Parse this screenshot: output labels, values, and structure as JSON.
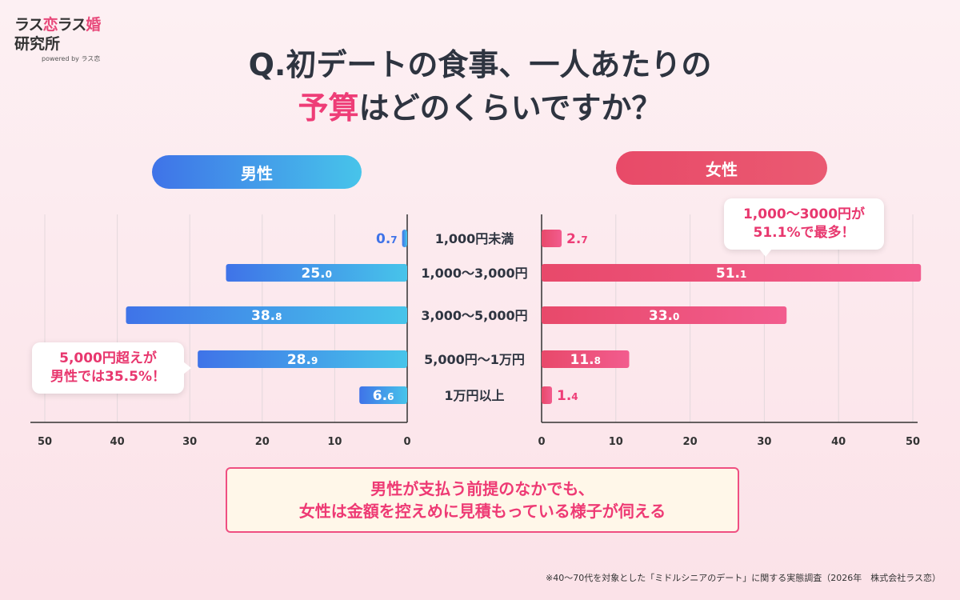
{
  "logo": {
    "part1": "ラス",
    "part2": "恋",
    "part3": "ラス",
    "part4": "婚",
    "line2": "研究所",
    "line3": "powered by ラス恋"
  },
  "title": {
    "line1": "Q.初デートの食事、一人あたりの",
    "line2_highlight": "予算",
    "line2_rest": "はどのくらいですか？"
  },
  "callouts": {
    "male": [
      "5,000円超えが",
      "男性では35.5%！"
    ],
    "female": [
      "1,000～3000円が",
      "51.1%で最多！"
    ]
  },
  "conclusion": [
    "男性が支払う前提のなかでも、",
    "女性は金額を控えめに見積もっている様子が伺える"
  ],
  "source": "※40～70代を対象とした「ミドルシニアのデート」に関する実態調査（2026年　株式会社ラス恋）",
  "colors": {
    "male_start": "#3f73e8",
    "male_end": "#47c4ea",
    "female_start": "#e8496a",
    "female_end": "#f25c8e",
    "accent": "#ee3d77"
  },
  "chart_data": {
    "type": "bar",
    "orientation": "horizontal-butterfly",
    "categories": [
      "1,000円未満",
      "1,000～3,000円",
      "3,000～5,000円",
      "5,000円～1万円",
      "1万円以上"
    ],
    "series": [
      {
        "name": "男性",
        "values": [
          0.7,
          25.0,
          38.8,
          28.9,
          6.6
        ]
      },
      {
        "name": "女性",
        "values": [
          2.7,
          51.1,
          33.0,
          11.8,
          1.4
        ]
      }
    ],
    "value_labels": {
      "男性": [
        [
          "0.",
          "7"
        ],
        [
          "25.",
          "0"
        ],
        [
          "38.",
          "8"
        ],
        [
          "28.",
          "9"
        ],
        [
          "6.",
          "6"
        ]
      ],
      "女性": [
        [
          "2.",
          "7"
        ],
        [
          "51.",
          "1"
        ],
        [
          "33.",
          "0"
        ],
        [
          "11.",
          "8"
        ],
        [
          "1.",
          "4"
        ]
      ]
    },
    "xlim": [
      0,
      50
    ],
    "ticks": [
      0,
      10,
      20,
      30,
      40,
      50
    ],
    "grid": true
  }
}
